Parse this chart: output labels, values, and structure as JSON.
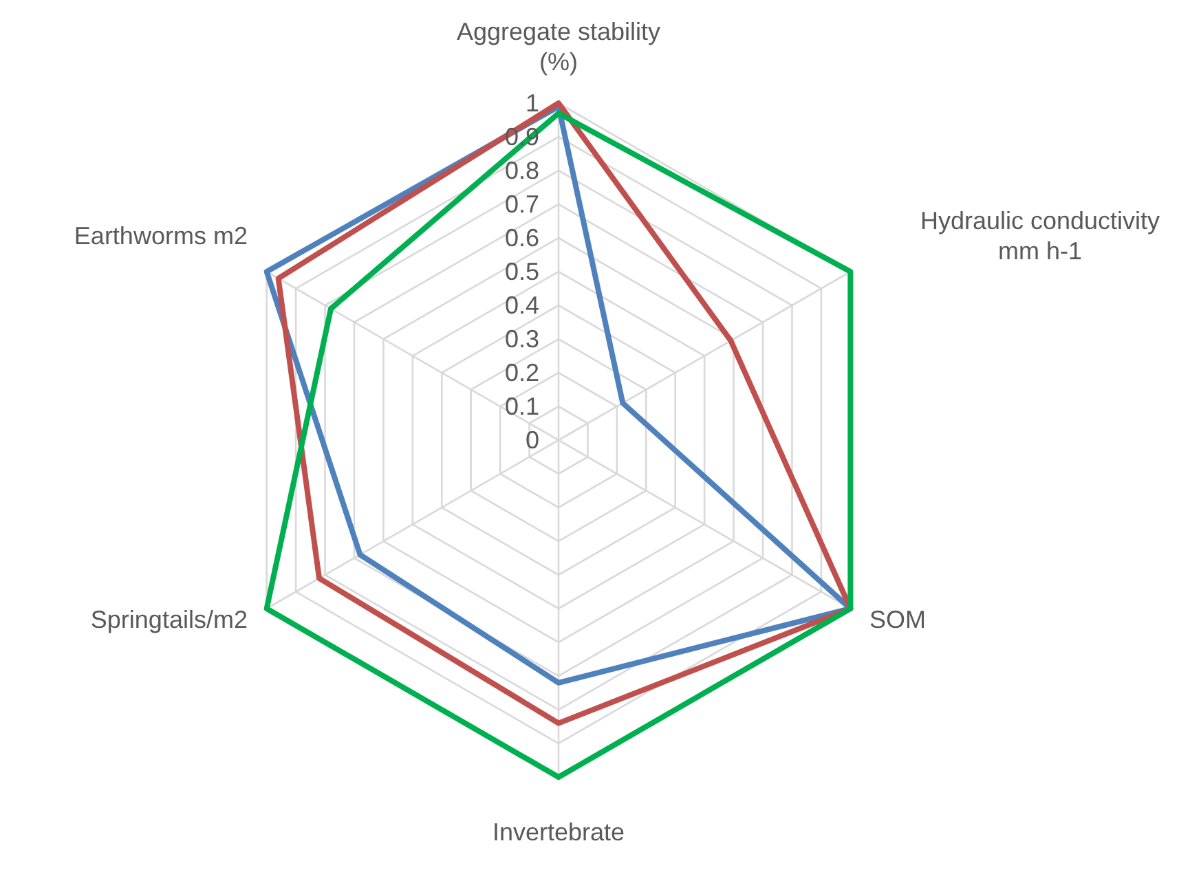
{
  "chart_data": {
    "type": "radar",
    "categories": [
      "Aggregate stability (%)",
      "Hydraulic conductivity mm h-1",
      "SOM",
      "Invertebrate",
      "Springtails/m2",
      "Earthworms m2"
    ],
    "series": [
      {
        "color": "#4f81bd",
        "values": [
          0.99,
          0.22,
          1,
          0.72,
          0.68,
          1
        ]
      },
      {
        "color": "#c0504d",
        "values": [
          1,
          0.59,
          1,
          0.84,
          0.82,
          0.96
        ]
      },
      {
        "color": "#00b050",
        "values": [
          0.97,
          1,
          1,
          1,
          1,
          0.78
        ]
      }
    ],
    "ylim": [
      0,
      1
    ],
    "yticks": [
      0,
      0.1,
      0.2,
      0.3,
      0.4,
      0.5,
      0.6,
      0.7,
      0.8,
      0.9,
      1
    ],
    "grid": true
  }
}
